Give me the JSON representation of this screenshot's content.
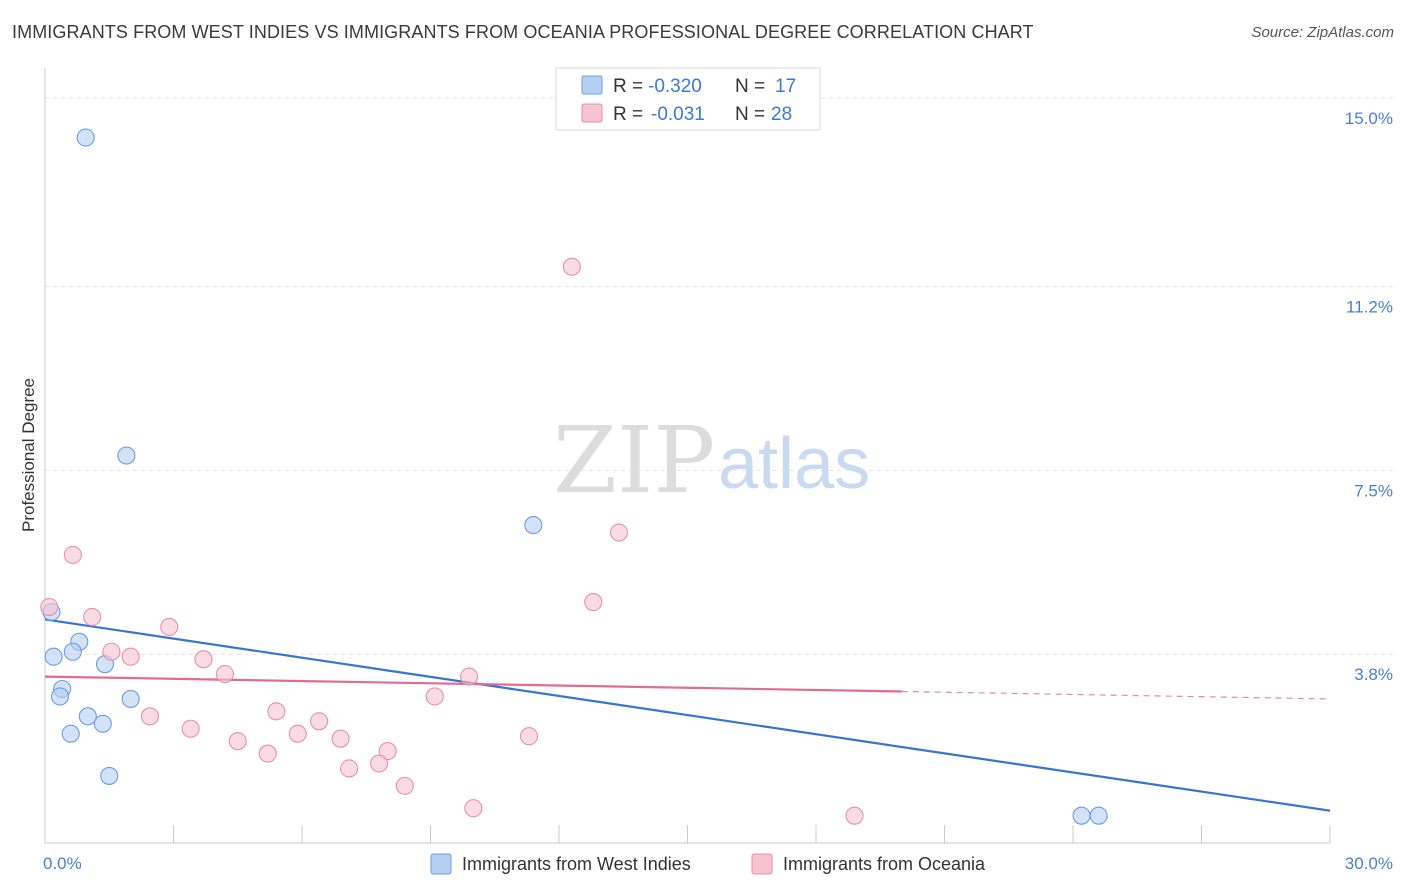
{
  "title": "IMMIGRANTS FROM WEST INDIES VS IMMIGRANTS FROM OCEANIA PROFESSIONAL DEGREE CORRELATION CHART",
  "source": "Source: ZipAtlas.com",
  "watermark": {
    "zip": "ZIP",
    "atlas": "atlas"
  },
  "chart_data": {
    "type": "scatter",
    "title": "IMMIGRANTS FROM WEST INDIES VS IMMIGRANTS FROM OCEANIA PROFESSIONAL DEGREE CORRELATION CHART",
    "xlabel": "",
    "ylabel": "Professional Degree",
    "xlim": [
      0,
      30
    ],
    "ylim": [
      0,
      15.4
    ],
    "x_tick_labels": [
      {
        "value": 0,
        "label": "0.0%"
      },
      {
        "value": 30,
        "label": "30.0%"
      }
    ],
    "x_minor_ticks": [
      0,
      3,
      6,
      9,
      12,
      15,
      18,
      21,
      24,
      27,
      30
    ],
    "y_ticks": [
      {
        "value": 3.8,
        "label": "3.8%"
      },
      {
        "value": 7.5,
        "label": "7.5%"
      },
      {
        "value": 11.2,
        "label": "11.2%"
      },
      {
        "value": 15.0,
        "label": "15.0%"
      }
    ],
    "legend": {
      "placement": "top-center",
      "rows": [
        {
          "r_label": "R =",
          "r_value": "-0.320",
          "n_label": "N =",
          "n_value": "17"
        },
        {
          "r_label": "R =",
          "r_value": "-0.031",
          "n_label": "N =",
          "n_value": "28"
        }
      ]
    },
    "series": [
      {
        "name": "Immigrants from West Indies",
        "color": "#6d9ee0",
        "fill": "#b5cff2",
        "line_color": "#3674d3",
        "trend": {
          "x0": 0,
          "y0": 4.5,
          "x1": 30,
          "y1": 0.65,
          "solid_until": 30
        },
        "points": [
          [
            0.95,
            14.2
          ],
          [
            1.9,
            7.8
          ],
          [
            11.4,
            6.4
          ],
          [
            0.15,
            4.65
          ],
          [
            0.8,
            4.05
          ],
          [
            0.2,
            3.75
          ],
          [
            0.65,
            3.85
          ],
          [
            1.4,
            3.6
          ],
          [
            0.4,
            3.1
          ],
          [
            0.35,
            2.95
          ],
          [
            2.0,
            2.9
          ],
          [
            1.0,
            2.55
          ],
          [
            1.35,
            2.4
          ],
          [
            0.6,
            2.2
          ],
          [
            1.5,
            1.35
          ],
          [
            24.2,
            0.55
          ],
          [
            24.6,
            0.55
          ]
        ]
      },
      {
        "name": "Immigrants from Oceania",
        "color": "#e890a8",
        "fill": "#f7c3d1",
        "line_color": "#e26b93",
        "trend": {
          "x0": 0,
          "y0": 3.35,
          "x1": 30,
          "y1": 2.9,
          "solid_until": 20
        },
        "points": [
          [
            12.3,
            11.6
          ],
          [
            13.4,
            6.25
          ],
          [
            0.65,
            5.8
          ],
          [
            12.8,
            4.85
          ],
          [
            0.1,
            4.75
          ],
          [
            1.1,
            4.55
          ],
          [
            2.9,
            4.35
          ],
          [
            1.55,
            3.85
          ],
          [
            2.0,
            3.75
          ],
          [
            3.7,
            3.7
          ],
          [
            4.2,
            3.4
          ],
          [
            9.9,
            3.35
          ],
          [
            9.1,
            2.95
          ],
          [
            5.4,
            2.65
          ],
          [
            2.45,
            2.55
          ],
          [
            6.4,
            2.45
          ],
          [
            3.4,
            2.3
          ],
          [
            5.9,
            2.2
          ],
          [
            11.3,
            2.15
          ],
          [
            6.9,
            2.1
          ],
          [
            4.5,
            2.05
          ],
          [
            5.2,
            1.8
          ],
          [
            8.0,
            1.85
          ],
          [
            7.1,
            1.5
          ],
          [
            7.8,
            1.6
          ],
          [
            8.4,
            1.15
          ],
          [
            10.0,
            0.7
          ],
          [
            18.9,
            0.55
          ]
        ]
      }
    ]
  }
}
